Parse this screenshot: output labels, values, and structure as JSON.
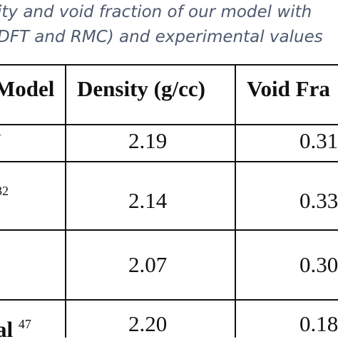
{
  "caption": {
    "lines": [
      "ity and void fraction of our model with",
      "DFT and RMC) and experimental values"
    ]
  },
  "table": {
    "header": [
      "Model",
      "Density (g/cc)",
      "Void Fra"
    ],
    "rows": [
      {
        "sup": "1",
        "density": "2.19",
        "void": "0.31"
      },
      {
        "sup": "32",
        "density": "2.14",
        "void": "0.33"
      },
      {
        "density": "2.07",
        "void": "0.30"
      },
      {
        "label": "al",
        "sup": "47",
        "density": "2.20",
        "void": "0.18"
      }
    ]
  }
}
